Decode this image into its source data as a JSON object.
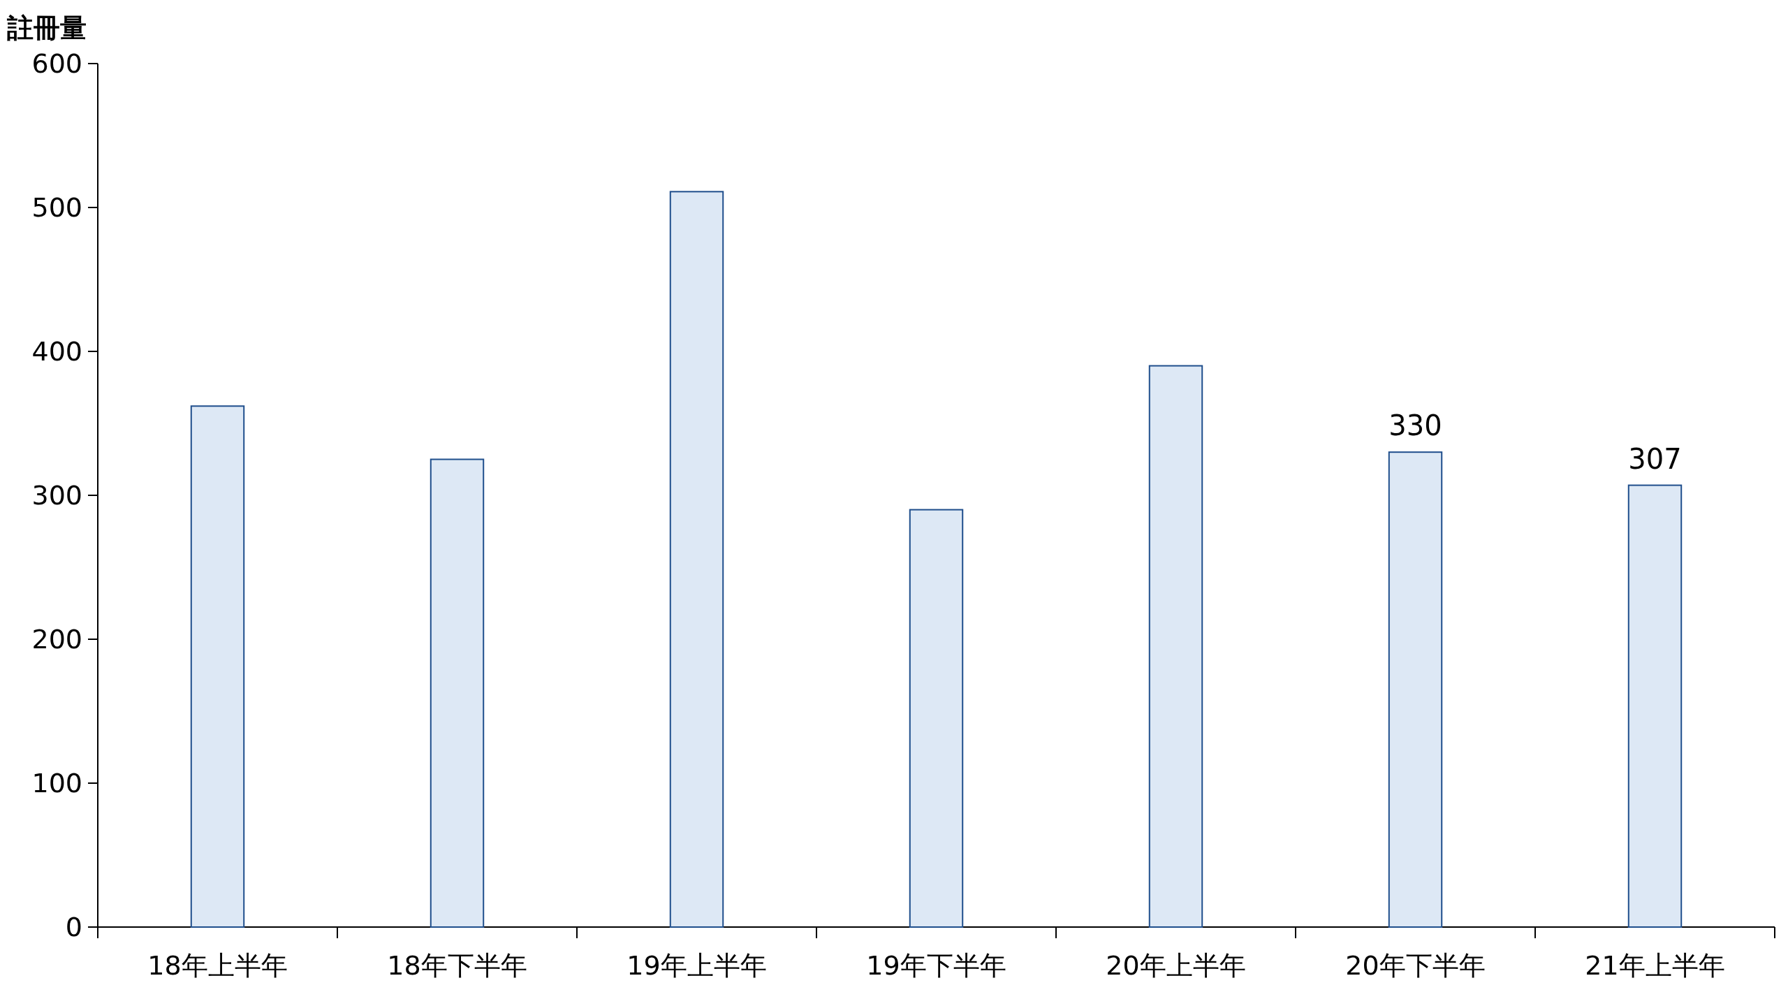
{
  "chart_data": {
    "type": "bar",
    "ylabel": "註冊量",
    "categories": [
      "18年上半年",
      "18年下半年",
      "19年上半年",
      "19年下半年",
      "20年上半年",
      "20年下半年",
      "21年上半年"
    ],
    "values": [
      362,
      325,
      511,
      290,
      390,
      330,
      307
    ],
    "value_labels": [
      null,
      null,
      null,
      null,
      null,
      "330",
      "307"
    ],
    "color": "#dde8f5",
    "ylim": [
      0,
      600
    ],
    "yticks": [
      0,
      100,
      200,
      300,
      400,
      500,
      600
    ]
  }
}
